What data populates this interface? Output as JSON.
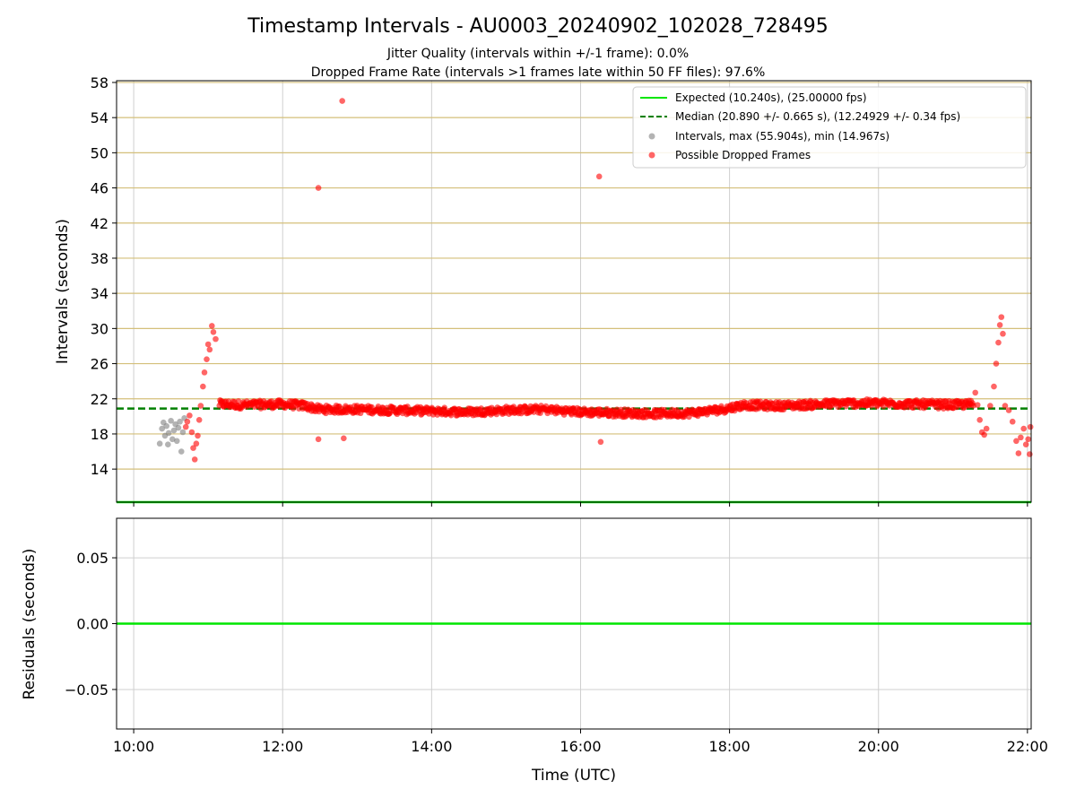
{
  "figure": {
    "title": "Timestamp Intervals - AU0003_20240902_102028_728495",
    "subtitle_1": "Jitter Quality (intervals within +/-1 frame): 0.0%",
    "subtitle_2": "Dropped Frame Rate (intervals >1 frames late within 50 FF files): 97.6%"
  },
  "chart_data": [
    {
      "type": "scatter",
      "panel": "top",
      "xlabel": "",
      "ylabel": "Intervals (seconds)",
      "x_unit": "hours (UTC, decimal)",
      "xlim": [
        9.77,
        22.05
      ],
      "ylim": [
        10.24,
        58.2
      ],
      "yticks": [
        14,
        18,
        22,
        26,
        30,
        34,
        38,
        42,
        46,
        50,
        54,
        58
      ],
      "ytick_labels": [
        "14",
        "18",
        "22",
        "26",
        "30",
        "34",
        "38",
        "42",
        "46",
        "50",
        "54",
        "58"
      ],
      "grid": "y-axis lines (tan) plus vertical grid at x ticks",
      "legend_position": "top-right",
      "lines": [
        {
          "name": "Expected (10.240s), (25.00000 fps)",
          "y": 10.24,
          "color": "#00e600",
          "style": "solid"
        },
        {
          "name": "Median (20.890 +/- 0.665 s), (12.24929 +/- 0.34 fps)",
          "y": 20.89,
          "color": "#008000",
          "style": "dashed"
        }
      ],
      "series": [
        {
          "name": "Intervals, max (55.904s), min (14.967s)",
          "color": "#808080",
          "points": [
            [
              10.35,
              16.9
            ],
            [
              10.38,
              18.6
            ],
            [
              10.4,
              19.3
            ],
            [
              10.42,
              17.8
            ],
            [
              10.44,
              18.9
            ],
            [
              10.46,
              16.8
            ],
            [
              10.47,
              18.1
            ],
            [
              10.5,
              19.5
            ],
            [
              10.52,
              17.4
            ],
            [
              10.54,
              18.4
            ],
            [
              10.56,
              19.1
            ],
            [
              10.58,
              17.2
            ],
            [
              10.6,
              18.7
            ],
            [
              10.62,
              19.4
            ],
            [
              10.64,
              16.0
            ],
            [
              10.66,
              18.2
            ],
            [
              10.68,
              19.8
            ]
          ]
        },
        {
          "name": "Possible Dropped Frames",
          "color": "#ff0000",
          "points": [
            [
              10.7,
              18.8
            ],
            [
              10.72,
              19.4
            ],
            [
              10.75,
              20.1
            ],
            [
              10.78,
              18.2
            ],
            [
              10.8,
              16.4
            ],
            [
              10.82,
              15.1
            ],
            [
              10.84,
              16.9
            ],
            [
              10.86,
              17.8
            ],
            [
              10.88,
              19.6
            ],
            [
              10.9,
              21.2
            ],
            [
              10.93,
              23.4
            ],
            [
              10.95,
              25.0
            ],
            [
              10.98,
              26.5
            ],
            [
              11.0,
              28.2
            ],
            [
              11.02,
              27.6
            ],
            [
              11.05,
              30.3
            ],
            [
              11.07,
              29.6
            ],
            [
              11.1,
              28.8
            ],
            [
              12.48,
              46.0
            ],
            [
              12.8,
              55.9
            ],
            [
              16.25,
              47.3
            ],
            [
              12.48,
              17.4
            ],
            [
              12.82,
              17.5
            ],
            [
              16.27,
              17.1
            ],
            [
              21.3,
              22.7
            ],
            [
              21.33,
              21.3
            ],
            [
              21.36,
              19.6
            ],
            [
              21.39,
              18.2
            ],
            [
              21.42,
              17.9
            ],
            [
              21.45,
              18.6
            ],
            [
              21.5,
              21.2
            ],
            [
              21.55,
              23.4
            ],
            [
              21.58,
              26.0
            ],
            [
              21.61,
              28.4
            ],
            [
              21.63,
              30.4
            ],
            [
              21.65,
              31.3
            ],
            [
              21.67,
              29.4
            ],
            [
              21.7,
              21.2
            ],
            [
              21.75,
              20.7
            ],
            [
              21.8,
              19.4
            ],
            [
              21.85,
              17.2
            ],
            [
              21.88,
              15.8
            ],
            [
              21.91,
              17.6
            ],
            [
              21.95,
              18.6
            ],
            [
              21.98,
              16.8
            ],
            [
              22.01,
              17.4
            ],
            [
              22.03,
              15.7
            ],
            [
              22.04,
              18.8
            ]
          ],
          "band": [
            [
              11.15,
              21.4
            ],
            [
              11.5,
              21.3
            ],
            [
              12.0,
              21.4
            ],
            [
              12.3,
              21.2
            ],
            [
              12.5,
              20.8
            ],
            [
              13.0,
              20.8
            ],
            [
              13.5,
              20.7
            ],
            [
              14.0,
              20.6
            ],
            [
              14.5,
              20.5
            ],
            [
              15.0,
              20.7
            ],
            [
              15.5,
              20.8
            ],
            [
              16.0,
              20.5
            ],
            [
              16.5,
              20.4
            ],
            [
              17.0,
              20.3
            ],
            [
              17.5,
              20.4
            ],
            [
              17.9,
              20.8
            ],
            [
              18.2,
              21.3
            ],
            [
              18.6,
              21.2
            ],
            [
              19.0,
              21.3
            ],
            [
              19.5,
              21.5
            ],
            [
              20.0,
              21.5
            ],
            [
              20.5,
              21.4
            ],
            [
              21.0,
              21.3
            ],
            [
              21.28,
              21.4
            ]
          ]
        }
      ]
    },
    {
      "type": "line",
      "panel": "bottom",
      "xlabel": "Time (UTC)",
      "ylabel": "Residuals (seconds)",
      "xlim": [
        9.77,
        22.05
      ],
      "ylim": [
        -0.08,
        0.08
      ],
      "yticks": [
        0.05,
        0.0,
        -0.05
      ],
      "ytick_labels": [
        "0.05",
        "0.00",
        "−0.05"
      ],
      "xticks": [
        10,
        12,
        14,
        16,
        18,
        20,
        22
      ],
      "xtick_labels": [
        "10:00",
        "12:00",
        "14:00",
        "16:00",
        "18:00",
        "20:00",
        "22:00"
      ],
      "grid": "on",
      "series": [
        {
          "name": "",
          "color": "#00e600",
          "values": [
            [
              9.77,
              0.0
            ],
            [
              22.05,
              0.0
            ]
          ]
        }
      ]
    }
  ]
}
